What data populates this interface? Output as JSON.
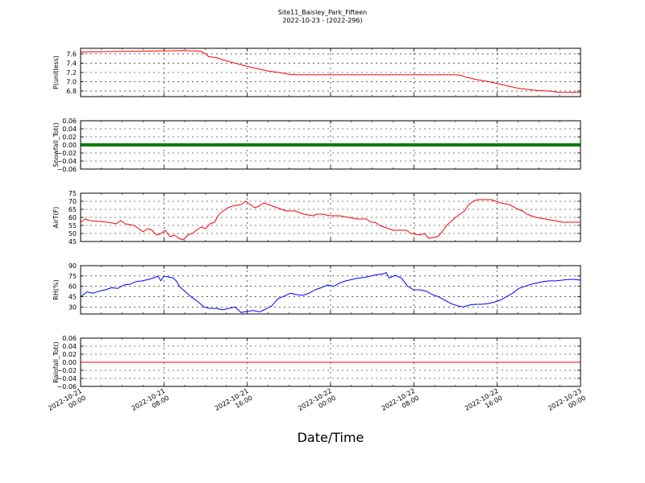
{
  "title": "Site11_Baisley_Park_Fifteen",
  "subtitle": "2022-10-23 - (2022-296)",
  "xlabel": "Date/Time",
  "colors": {
    "red": "#ff0000",
    "green": "#008000",
    "blue": "#0000ff"
  },
  "chart_data": {
    "type": "line",
    "x_range": [
      "2022-10-21 00:00",
      "2022-10-23 00:00"
    ],
    "x_ticks": [
      [
        "2022-10-21",
        "00:00"
      ],
      [
        "2022-10-21",
        "08:00"
      ],
      [
        "2022-10-21",
        "16:00"
      ],
      [
        "2022-10-22",
        "00:00"
      ],
      [
        "2022-10-22",
        "08:00"
      ],
      [
        "2022-10-22",
        "16:00"
      ],
      [
        "2022-10-23",
        "00:00"
      ]
    ],
    "x_tick_hours": [
      0,
      8,
      16,
      24,
      32,
      40,
      48
    ],
    "grid": true,
    "panels": [
      {
        "ylabel": "P(unitless)",
        "ylim": [
          6.68,
          7.72
        ],
        "yticks": [
          6.8,
          7.0,
          7.2,
          7.4,
          7.6
        ],
        "ytick_labels": [
          "6.8",
          "7.0",
          "7.2",
          "7.4",
          "7.6"
        ],
        "color": "#ff0000",
        "style": "line",
        "points": [
          [
            0,
            7.64
          ],
          [
            3,
            7.65
          ],
          [
            6,
            7.66
          ],
          [
            10,
            7.67
          ],
          [
            11.5,
            7.66
          ],
          [
            12,
            7.6
          ],
          [
            12.3,
            7.54
          ],
          [
            13,
            7.52
          ],
          [
            14,
            7.45
          ],
          [
            15,
            7.39
          ],
          [
            16,
            7.33
          ],
          [
            17,
            7.28
          ],
          [
            18,
            7.23
          ],
          [
            19,
            7.2
          ],
          [
            20,
            7.16
          ],
          [
            21,
            7.15
          ],
          [
            24,
            7.15
          ],
          [
            28,
            7.15
          ],
          [
            32,
            7.15
          ],
          [
            36,
            7.15
          ],
          [
            36.5,
            7.14
          ],
          [
            37,
            7.1
          ],
          [
            38,
            7.05
          ],
          [
            39,
            7.01
          ],
          [
            40,
            6.96
          ],
          [
            41,
            6.91
          ],
          [
            42,
            6.86
          ],
          [
            43,
            6.83
          ],
          [
            44,
            6.81
          ],
          [
            45,
            6.8
          ],
          [
            46,
            6.77
          ],
          [
            47,
            6.77
          ],
          [
            48,
            6.77
          ]
        ]
      },
      {
        "ylabel": "Snowfall_Tot()",
        "ylim": [
          -0.06,
          0.06
        ],
        "yticks": [
          -0.06,
          -0.04,
          -0.02,
          0.0,
          0.02,
          0.04,
          0.06
        ],
        "ytick_labels": [
          "−0.06",
          "−0.04",
          "−0.02",
          "0.00",
          "0.02",
          "0.04",
          "0.06"
        ],
        "color": "#008000",
        "style": "thick",
        "points": [
          [
            0,
            0
          ],
          [
            48,
            0
          ]
        ]
      },
      {
        "ylabel": "AirT(F)",
        "ylim": [
          45,
          75
        ],
        "yticks": [
          45,
          50,
          55,
          60,
          65,
          70,
          75
        ],
        "ytick_labels": [
          "45",
          "50",
          "55",
          "60",
          "65",
          "70",
          "75"
        ],
        "color": "#ff0000",
        "style": "line",
        "points": [
          [
            0,
            57
          ],
          [
            0.5,
            59
          ],
          [
            1,
            58
          ],
          [
            2,
            57.5
          ],
          [
            3,
            57
          ],
          [
            3.5,
            56.5
          ],
          [
            4,
            56
          ],
          [
            4.5,
            58
          ],
          [
            5,
            56
          ],
          [
            6,
            55
          ],
          [
            6.5,
            53
          ],
          [
            7,
            51
          ],
          [
            7.5,
            53
          ],
          [
            8,
            52
          ],
          [
            8.5,
            49
          ],
          [
            9,
            50
          ],
          [
            9.5,
            52
          ],
          [
            10,
            48
          ],
          [
            10.5,
            49
          ],
          [
            11,
            47
          ],
          [
            11.5,
            46
          ],
          [
            12,
            49
          ],
          [
            12.5,
            50
          ],
          [
            13,
            52
          ],
          [
            13.5,
            54
          ],
          [
            14,
            53
          ],
          [
            14.5,
            56
          ],
          [
            15,
            57
          ],
          [
            15.5,
            62
          ],
          [
            16,
            64
          ],
          [
            16.5,
            66
          ],
          [
            17,
            67
          ],
          [
            18,
            68
          ],
          [
            18.5,
            70
          ],
          [
            19,
            68
          ],
          [
            19.5,
            66
          ],
          [
            20,
            67
          ],
          [
            20.5,
            69
          ],
          [
            21,
            68
          ],
          [
            22,
            66
          ],
          [
            22.5,
            65
          ],
          [
            23,
            64
          ],
          [
            24,
            64
          ],
          [
            25,
            62
          ],
          [
            26,
            61
          ],
          [
            26.5,
            62
          ],
          [
            27,
            62
          ],
          [
            28,
            61
          ],
          [
            29,
            61
          ],
          [
            30,
            60
          ],
          [
            31,
            59
          ],
          [
            32,
            59
          ],
          [
            32.5,
            57
          ],
          [
            33,
            57
          ],
          [
            33.5,
            55
          ],
          [
            34,
            54
          ],
          [
            35,
            52
          ],
          [
            36,
            52
          ],
          [
            36.5,
            52
          ],
          [
            37,
            50
          ],
          [
            38,
            49
          ],
          [
            38.5,
            50
          ],
          [
            39,
            47
          ],
          [
            40,
            48
          ],
          [
            40.5,
            51
          ],
          [
            41,
            55
          ],
          [
            42,
            60
          ],
          [
            42.5,
            62
          ],
          [
            43,
            64
          ],
          [
            43.5,
            68
          ],
          [
            44,
            70
          ],
          [
            44.5,
            71
          ],
          [
            45,
            71
          ],
          [
            46,
            71
          ],
          [
            46.5,
            70
          ],
          [
            47,
            69
          ],
          [
            48,
            68
          ],
          [
            49,
            65
          ],
          [
            49.5,
            64
          ],
          [
            50,
            62
          ],
          [
            51,
            60
          ],
          [
            52,
            59
          ],
          [
            53,
            58
          ],
          [
            54,
            57
          ],
          [
            55,
            57
          ],
          [
            56,
            57
          ]
        ]
      },
      {
        "ylabel": "RH(%)",
        "ylim": [
          20,
          90
        ],
        "yticks": [
          30,
          45,
          60,
          75,
          90
        ],
        "ytick_labels": [
          "30",
          "45",
          "60",
          "75",
          "90"
        ],
        "color": "#0000ff",
        "style": "line",
        "points": [
          [
            0,
            45
          ],
          [
            1,
            52
          ],
          [
            2,
            50
          ],
          [
            3,
            53
          ],
          [
            4,
            55
          ],
          [
            5,
            58
          ],
          [
            6,
            57
          ],
          [
            7,
            62
          ],
          [
            8,
            63
          ],
          [
            9,
            67
          ],
          [
            10,
            68
          ],
          [
            11,
            70
          ],
          [
            12,
            73
          ],
          [
            12.5,
            75
          ],
          [
            13,
            68
          ],
          [
            13.5,
            75
          ],
          [
            14,
            74
          ],
          [
            15,
            72
          ],
          [
            15.5,
            68
          ],
          [
            16,
            60
          ],
          [
            17,
            52
          ],
          [
            18,
            44
          ],
          [
            19,
            38
          ],
          [
            20,
            30
          ],
          [
            21,
            28
          ],
          [
            22,
            28
          ],
          [
            23,
            26
          ],
          [
            24,
            28
          ],
          [
            25,
            30
          ],
          [
            26,
            22
          ],
          [
            27,
            24
          ],
          [
            28,
            25
          ],
          [
            29,
            23
          ],
          [
            30,
            27
          ],
          [
            31,
            32
          ],
          [
            32,
            42
          ],
          [
            33,
            46
          ],
          [
            34,
            50
          ],
          [
            35,
            48
          ],
          [
            36,
            47
          ],
          [
            37,
            50
          ],
          [
            38,
            55
          ],
          [
            39,
            58
          ],
          [
            40,
            62
          ],
          [
            41,
            60
          ],
          [
            42,
            65
          ],
          [
            43,
            68
          ],
          [
            44,
            70
          ],
          [
            45,
            72
          ],
          [
            46,
            73
          ],
          [
            47,
            75
          ],
          [
            48,
            77
          ],
          [
            49,
            78
          ],
          [
            49.5,
            80
          ],
          [
            50,
            72
          ],
          [
            51,
            76
          ],
          [
            52,
            72
          ],
          [
            53,
            60
          ],
          [
            54,
            55
          ],
          [
            55,
            55
          ],
          [
            56,
            53
          ],
          [
            57,
            48
          ],
          [
            58,
            45
          ],
          [
            59,
            40
          ],
          [
            60,
            35
          ],
          [
            61,
            32
          ],
          [
            62,
            30
          ],
          [
            63,
            33
          ],
          [
            64,
            34
          ],
          [
            65,
            34
          ],
          [
            66,
            35
          ],
          [
            67,
            37
          ],
          [
            68,
            40
          ],
          [
            69,
            45
          ],
          [
            70,
            50
          ],
          [
            71,
            57
          ],
          [
            72,
            60
          ],
          [
            73,
            63
          ],
          [
            74,
            65
          ],
          [
            75,
            67
          ],
          [
            76,
            68
          ],
          [
            77,
            68
          ],
          [
            78,
            69
          ],
          [
            79,
            70
          ],
          [
            80,
            70
          ],
          [
            81,
            69
          ]
        ]
      },
      {
        "ylabel": "Rainfall_Tot()",
        "ylim": [
          -0.06,
          0.06
        ],
        "yticks": [
          -0.06,
          -0.04,
          -0.02,
          0.0,
          0.02,
          0.04,
          0.06
        ],
        "ytick_labels": [
          "−0.06",
          "−0.04",
          "−0.02",
          "0.00",
          "0.02",
          "0.04",
          "0.06"
        ],
        "color": "#ff0000",
        "style": "line",
        "points": [
          [
            0,
            0
          ],
          [
            48,
            0
          ]
        ]
      }
    ]
  }
}
